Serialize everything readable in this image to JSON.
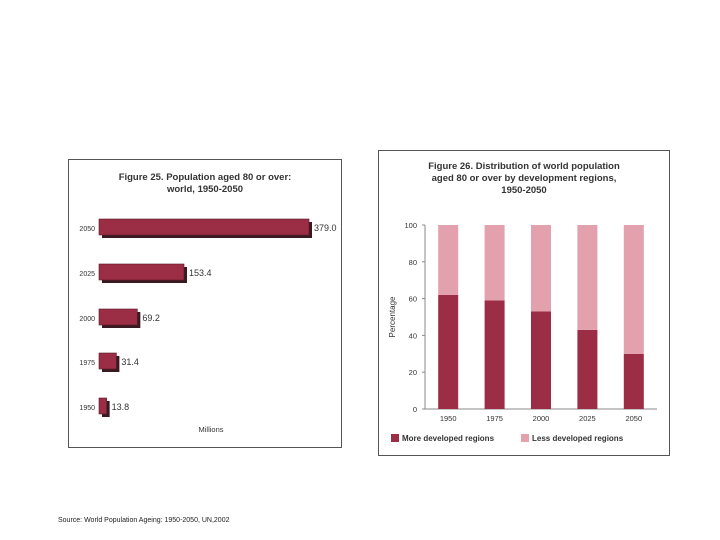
{
  "source": "Source: World Population Ageing: 1950-2050, UN,2002",
  "chart_data": [
    {
      "type": "bar",
      "orientation": "horizontal",
      "title": "Figure 25.  Population aged 80 or over:\nworld, 1950-2050",
      "xlabel": "Millions",
      "categories": [
        "2050",
        "2025",
        "2000",
        "1975",
        "1950"
      ],
      "values": [
        379.0,
        153.4,
        69.2,
        31.4,
        13.8
      ],
      "value_labels": [
        "379.0",
        "153.4",
        "69.2",
        "31.4",
        "13.8"
      ],
      "colors": {
        "bar": "#9b2d45",
        "shadow": "#3a1a22"
      }
    },
    {
      "type": "bar",
      "stacked": true,
      "title": "Figure 26.  Distribution of world population\naged 80 or over by development regions,\n1950-2050",
      "ylabel": "Percentage",
      "ylim": [
        0,
        100
      ],
      "yticks": [
        "0",
        "20",
        "40",
        "60",
        "80",
        "100"
      ],
      "categories": [
        "1950",
        "1975",
        "2000",
        "2025",
        "2050"
      ],
      "series": [
        {
          "name": "More developed regions",
          "values": [
            62,
            59,
            53,
            43,
            30
          ],
          "color": "#9b2d45"
        },
        {
          "name": "Less developed regions",
          "values": [
            38,
            41,
            47,
            57,
            70
          ],
          "color": "#e3a0ad"
        }
      ],
      "legend": "bottom"
    }
  ]
}
